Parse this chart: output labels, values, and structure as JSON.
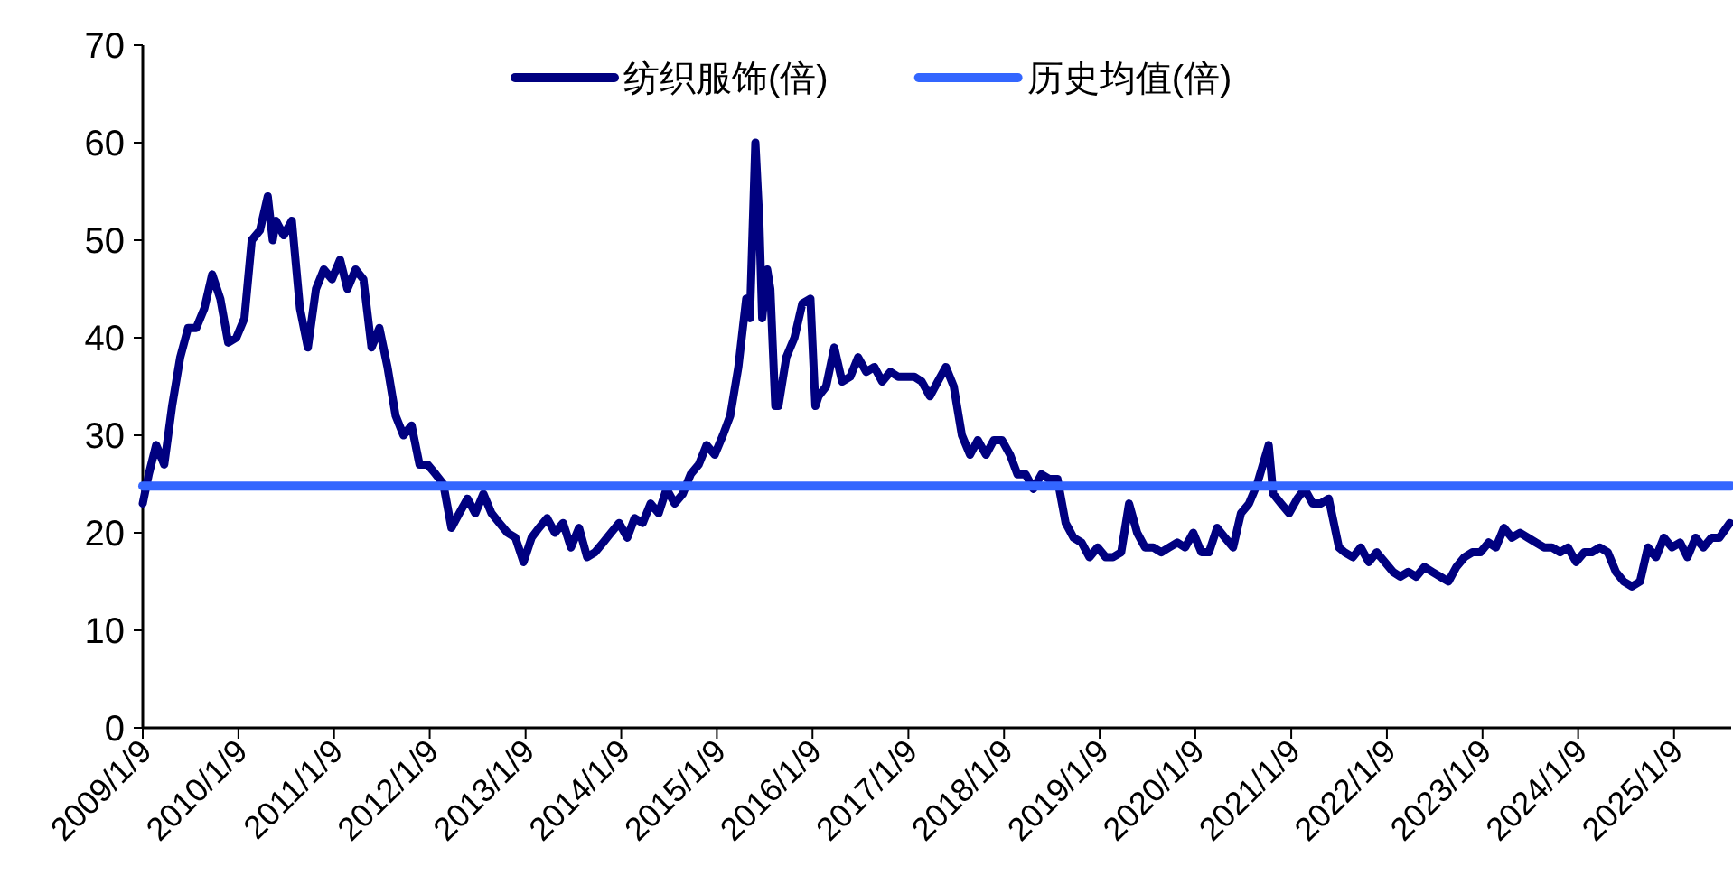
{
  "chart_data": {
    "type": "line",
    "legend": "top",
    "grid": false,
    "xlim": [
      "2009-01-09",
      "2025-08-15"
    ],
    "xticks": [
      {
        "value": "2009-01-09",
        "label": "2009/1/9"
      },
      {
        "value": "2010-01-09",
        "label": "2010/1/9"
      },
      {
        "value": "2011-01-09",
        "label": "2011/1/9"
      },
      {
        "value": "2012-01-09",
        "label": "2012/1/9"
      },
      {
        "value": "2013-01-09",
        "label": "2013/1/9"
      },
      {
        "value": "2014-01-09",
        "label": "2014/1/9"
      },
      {
        "value": "2015-01-09",
        "label": "2015/1/9"
      },
      {
        "value": "2016-01-09",
        "label": "2016/1/9"
      },
      {
        "value": "2017-01-09",
        "label": "2017/1/9"
      },
      {
        "value": "2018-01-09",
        "label": "2018/1/9"
      },
      {
        "value": "2019-01-09",
        "label": "2019/1/9"
      },
      {
        "value": "2020-01-09",
        "label": "2020/1/9"
      },
      {
        "value": "2021-01-09",
        "label": "2021/1/9"
      },
      {
        "value": "2022-01-09",
        "label": "2022/1/9"
      },
      {
        "value": "2023-01-09",
        "label": "2023/1/9"
      },
      {
        "value": "2024-01-09",
        "label": "2024/1/9"
      },
      {
        "value": "2025-01-09",
        "label": "2025/1/9"
      }
    ],
    "ylim": [
      0,
      70
    ],
    "yticks": [
      0,
      10,
      20,
      30,
      40,
      50,
      60,
      70
    ],
    "series": [
      {
        "name": "纺织服饰(倍)",
        "color": "#000080",
        "x": [
          "2009-01-09",
          "2009-02-01",
          "2009-03-01",
          "2009-04-01",
          "2009-05-01",
          "2009-06-01",
          "2009-07-01",
          "2009-08-01",
          "2009-09-01",
          "2009-10-01",
          "2009-11-01",
          "2009-12-01",
          "2010-01-01",
          "2010-02-01",
          "2010-03-01",
          "2010-04-01",
          "2010-05-01",
          "2010-05-20",
          "2010-06-01",
          "2010-07-01",
          "2010-08-01",
          "2010-09-01",
          "2010-10-01",
          "2010-11-01",
          "2010-12-01",
          "2011-01-01",
          "2011-02-01",
          "2011-03-01",
          "2011-04-01",
          "2011-05-01",
          "2011-06-01",
          "2011-07-01",
          "2011-08-01",
          "2011-09-01",
          "2011-10-01",
          "2011-11-01",
          "2011-12-01",
          "2012-01-01",
          "2012-02-01",
          "2012-03-01",
          "2012-04-01",
          "2012-05-01",
          "2012-06-01",
          "2012-07-01",
          "2012-08-01",
          "2012-09-01",
          "2012-10-01",
          "2012-11-01",
          "2012-12-01",
          "2013-01-01",
          "2013-02-01",
          "2013-03-01",
          "2013-04-01",
          "2013-05-01",
          "2013-06-01",
          "2013-07-01",
          "2013-08-01",
          "2013-09-01",
          "2013-10-01",
          "2013-11-01",
          "2013-12-01",
          "2014-01-01",
          "2014-02-01",
          "2014-03-01",
          "2014-04-01",
          "2014-05-01",
          "2014-06-01",
          "2014-07-01",
          "2014-08-01",
          "2014-09-01",
          "2014-10-01",
          "2014-11-01",
          "2014-12-01",
          "2015-01-01",
          "2015-02-01",
          "2015-03-01",
          "2015-04-01",
          "2015-05-01",
          "2015-05-15",
          "2015-06-05",
          "2015-06-20",
          "2015-07-01",
          "2015-07-20",
          "2015-08-01",
          "2015-08-20",
          "2015-09-01",
          "2015-10-01",
          "2015-11-01",
          "2015-12-01",
          "2016-01-01",
          "2016-01-20",
          "2016-02-01",
          "2016-03-01",
          "2016-04-01",
          "2016-05-01",
          "2016-06-01",
          "2016-07-01",
          "2016-08-01",
          "2016-09-01",
          "2016-10-01",
          "2016-11-01",
          "2016-12-01",
          "2017-01-01",
          "2017-02-01",
          "2017-03-01",
          "2017-04-01",
          "2017-05-01",
          "2017-06-01",
          "2017-07-01",
          "2017-08-01",
          "2017-09-01",
          "2017-10-01",
          "2017-11-01",
          "2017-12-01",
          "2018-01-01",
          "2018-02-01",
          "2018-03-01",
          "2018-04-01",
          "2018-05-01",
          "2018-06-01",
          "2018-07-01",
          "2018-08-01",
          "2018-09-01",
          "2018-10-01",
          "2018-11-01",
          "2018-12-01",
          "2019-01-01",
          "2019-02-01",
          "2019-03-01",
          "2019-04-01",
          "2019-05-01",
          "2019-06-01",
          "2019-07-01",
          "2019-08-01",
          "2019-09-01",
          "2019-10-01",
          "2019-11-01",
          "2019-12-01",
          "2020-01-01",
          "2020-02-01",
          "2020-03-01",
          "2020-04-01",
          "2020-05-01",
          "2020-06-01",
          "2020-07-01",
          "2020-08-01",
          "2020-09-01",
          "2020-10-15",
          "2020-11-01",
          "2020-12-01",
          "2021-01-01",
          "2021-02-01",
          "2021-03-01",
          "2021-04-01",
          "2021-05-01",
          "2021-06-01",
          "2021-07-10",
          "2021-08-01",
          "2021-09-01",
          "2021-10-01",
          "2021-11-01",
          "2021-12-01",
          "2022-01-01",
          "2022-02-01",
          "2022-03-01",
          "2022-04-01",
          "2022-05-01",
          "2022-06-01",
          "2022-07-01",
          "2022-08-01",
          "2022-09-01",
          "2022-10-01",
          "2022-11-01",
          "2022-12-01",
          "2023-01-01",
          "2023-02-01",
          "2023-03-01",
          "2023-04-01",
          "2023-05-01",
          "2023-06-01",
          "2023-07-01",
          "2023-08-01",
          "2023-09-01",
          "2023-10-01",
          "2023-11-01",
          "2023-12-01",
          "2024-01-01",
          "2024-02-01",
          "2024-03-01",
          "2024-04-01",
          "2024-05-01",
          "2024-06-01",
          "2024-07-01",
          "2024-08-01",
          "2024-09-01",
          "2024-10-01",
          "2024-11-01",
          "2024-12-01",
          "2025-01-01",
          "2025-02-01",
          "2025-03-01",
          "2025-04-01",
          "2025-05-01",
          "2025-06-01",
          "2025-07-01",
          "2025-08-10"
        ],
        "values": [
          23,
          26,
          29,
          27,
          33,
          38,
          41,
          41,
          43,
          46.5,
          44,
          39.5,
          40,
          42,
          50,
          51,
          54.5,
          50,
          52,
          50.5,
          52,
          43,
          39,
          45,
          47,
          46,
          48,
          45,
          47,
          46,
          39,
          41,
          37,
          32,
          30,
          31,
          27,
          27,
          26,
          25,
          20.5,
          22,
          23.5,
          22,
          24,
          22,
          21,
          20,
          19.5,
          17,
          19.5,
          20.5,
          21.5,
          20,
          21,
          18.5,
          20.5,
          17.5,
          18,
          19,
          20,
          21,
          19.5,
          21.5,
          21,
          23,
          22,
          24.5,
          23,
          24,
          26,
          27,
          29,
          28,
          30,
          32,
          37,
          44,
          42,
          60,
          52,
          42,
          47,
          45,
          33,
          33,
          38,
          40,
          43.5,
          44,
          33,
          34,
          35,
          39,
          35.5,
          36,
          38,
          36.5,
          37,
          35.5,
          36.5,
          36,
          36,
          36,
          35.5,
          34,
          35.5,
          37,
          35,
          30,
          28,
          29.5,
          28,
          29.5,
          29.5,
          28,
          26,
          26,
          24.5,
          26,
          25.5,
          25.5,
          21,
          19.5,
          19,
          17.5,
          18.5,
          17.5,
          17.5,
          18,
          23,
          20,
          18.5,
          18.5,
          18,
          18.5,
          19,
          18.5,
          20,
          18,
          18,
          20.5,
          19.5,
          18.5,
          22,
          23,
          25,
          29,
          24,
          23,
          22,
          23.5,
          24.5,
          23,
          23,
          23.5,
          18.5,
          18,
          17.5,
          18.5,
          17,
          18,
          17,
          16,
          15.5,
          16,
          15.5,
          16.5,
          16,
          15.5,
          15,
          16.5,
          17.5,
          18,
          18,
          19,
          18.5,
          20.5,
          19.5,
          20,
          19.5,
          19,
          18.5,
          18.5,
          18,
          18.5,
          17,
          18,
          18,
          18.5,
          18,
          16,
          15,
          14.5,
          15,
          18.5,
          17.5,
          19.5,
          18.5,
          19,
          17.5,
          19.5,
          18.5,
          19.5,
          19.5,
          21
        ]
      },
      {
        "name": "历史均值(倍)",
        "color": "#3366ff",
        "x": [
          "2009-01-09",
          "2025-08-15"
        ],
        "values": [
          24.8,
          24.8
        ]
      }
    ]
  }
}
